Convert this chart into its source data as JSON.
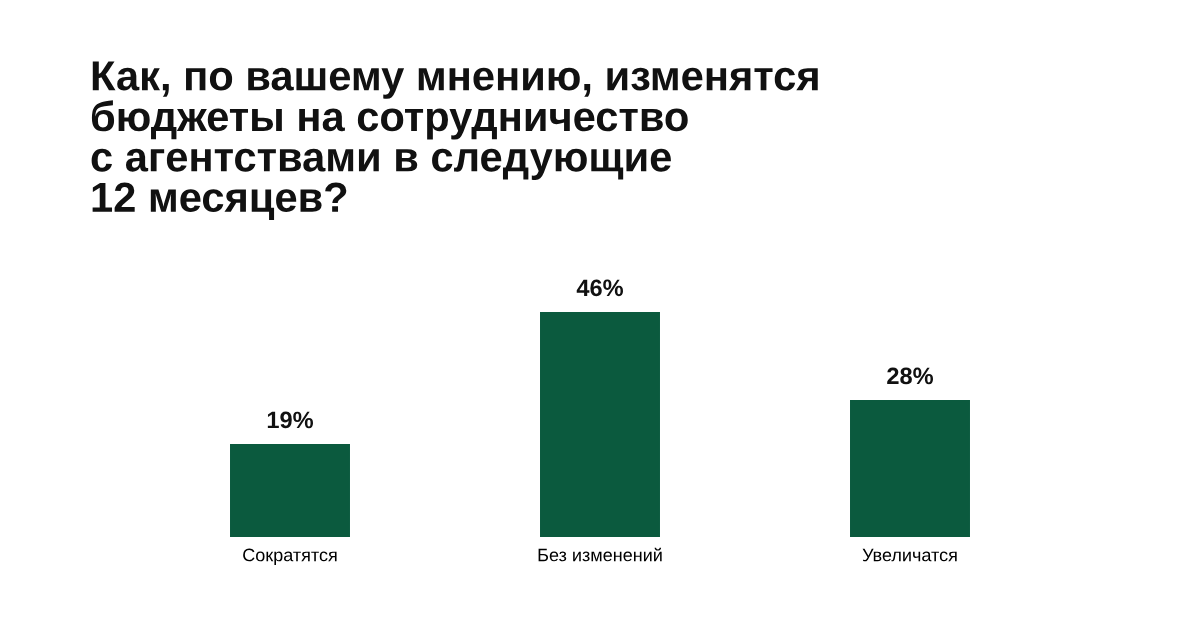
{
  "chart_data": {
    "type": "bar",
    "title": "Как, по вашему мнению, изменятся\nбюджеты на сотрудничество\nс агентствами в следующие\n12 месяцев?",
    "categories": [
      "Сократятся",
      "Без изменений",
      "Увеличатся"
    ],
    "values": [
      19,
      46,
      28
    ],
    "value_labels": [
      "19%",
      "46%",
      "28%"
    ],
    "color": "#0b5a3e"
  }
}
